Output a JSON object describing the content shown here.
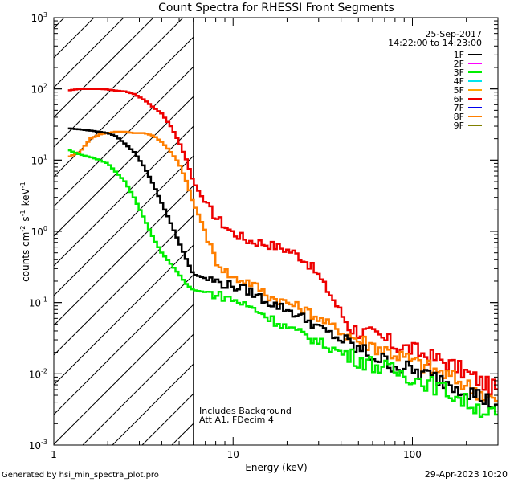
{
  "chart_data": {
    "type": "line",
    "title": "Count Spectra for RHESSI Front Segments",
    "xlabel": "Energy (keV)",
    "ylabel": "counts cm^-2 s^-1 keV^-1",
    "xscale": "log",
    "yscale": "log",
    "xlim": [
      1,
      300
    ],
    "ylim": [
      0.001,
      1000
    ],
    "x_tick_labels": [
      {
        "value": 1,
        "label": "1"
      },
      {
        "value": 10,
        "label": "10"
      },
      {
        "value": 100,
        "label": "100"
      }
    ],
    "y_tick_labels": [
      {
        "value": 0.001,
        "base": "10",
        "exp": "-3"
      },
      {
        "value": 0.01,
        "base": "10",
        "exp": "-2"
      },
      {
        "value": 0.1,
        "base": "10",
        "exp": "-1"
      },
      {
        "value": 1,
        "base": "10",
        "exp": "0"
      },
      {
        "value": 10,
        "base": "10",
        "exp": "1"
      },
      {
        "value": 100,
        "base": "10",
        "exp": "2"
      },
      {
        "value": 1000,
        "base": "10",
        "exp": "3"
      }
    ],
    "date": "25-Sep-2017",
    "time_range": "14:22:00 to 14:23:00",
    "shaded_region_max_energy": 6,
    "annotations": [
      "Includes Background",
      "Att A1, FDecim 4"
    ],
    "legend": [
      {
        "name": "1F",
        "color": "#000000"
      },
      {
        "name": "2F",
        "color": "#ff00ff"
      },
      {
        "name": "3F",
        "color": "#00ee00"
      },
      {
        "name": "4F",
        "color": "#00e5ee"
      },
      {
        "name": "5F",
        "color": "#ffa500"
      },
      {
        "name": "6F",
        "color": "#ee0000"
      },
      {
        "name": "7F",
        "color": "#0000ee"
      },
      {
        "name": "8F",
        "color": "#ff7f00"
      },
      {
        "name": "9F",
        "color": "#808000"
      }
    ],
    "series": [
      {
        "name": "6F",
        "color": "#ee0000",
        "points": [
          [
            1.2,
            95
          ],
          [
            1.4,
            100
          ],
          [
            1.6,
            100
          ],
          [
            1.8,
            100
          ],
          [
            2.0,
            98
          ],
          [
            2.2,
            95
          ],
          [
            2.5,
            92
          ],
          [
            2.8,
            85
          ],
          [
            3.2,
            70
          ],
          [
            3.6,
            55
          ],
          [
            4.0,
            45
          ],
          [
            4.5,
            30
          ],
          [
            5.0,
            18
          ],
          [
            5.5,
            10
          ],
          [
            6.0,
            5
          ],
          [
            6.5,
            3.5
          ],
          [
            7.0,
            2.5
          ],
          [
            8.0,
            1.6
          ],
          [
            9.0,
            1.2
          ],
          [
            10,
            0.95
          ],
          [
            11,
            0.85
          ],
          [
            12,
            0.75
          ],
          [
            14,
            0.7
          ],
          [
            16,
            0.65
          ],
          [
            18,
            0.6
          ],
          [
            20,
            0.55
          ],
          [
            22,
            0.5
          ],
          [
            25,
            0.4
          ],
          [
            28,
            0.3
          ],
          [
            30,
            0.24
          ],
          [
            32,
            0.18
          ],
          [
            35,
            0.13
          ],
          [
            38,
            0.09
          ],
          [
            42,
            0.06
          ],
          [
            45,
            0.045
          ],
          [
            50,
            0.04
          ],
          [
            60,
            0.035
          ],
          [
            70,
            0.03
          ],
          [
            80,
            0.025
          ],
          [
            100,
            0.022
          ],
          [
            120,
            0.018
          ],
          [
            150,
            0.015
          ],
          [
            180,
            0.012
          ],
          [
            220,
            0.009
          ],
          [
            260,
            0.007
          ],
          [
            300,
            0.006
          ]
        ]
      },
      {
        "name": "8F",
        "color": "#ff7f00",
        "points": [
          [
            1.2,
            11
          ],
          [
            1.4,
            13
          ],
          [
            1.6,
            20
          ],
          [
            1.8,
            23
          ],
          [
            2.0,
            24
          ],
          [
            2.2,
            25
          ],
          [
            2.5,
            25
          ],
          [
            2.8,
            24
          ],
          [
            3.2,
            24
          ],
          [
            3.6,
            22
          ],
          [
            4.0,
            18
          ],
          [
            4.5,
            13
          ],
          [
            5.0,
            9
          ],
          [
            5.5,
            5
          ],
          [
            6.0,
            2.5
          ],
          [
            6.5,
            1.6
          ],
          [
            7.0,
            1.0
          ],
          [
            7.5,
            0.6
          ],
          [
            8.0,
            0.4
          ],
          [
            9.0,
            0.28
          ],
          [
            10,
            0.22
          ],
          [
            12,
            0.2
          ],
          [
            14,
            0.16
          ],
          [
            16,
            0.12
          ],
          [
            20,
            0.1
          ],
          [
            25,
            0.08
          ],
          [
            30,
            0.06
          ],
          [
            40,
            0.04
          ],
          [
            50,
            0.03
          ],
          [
            70,
            0.022
          ],
          [
            100,
            0.015
          ],
          [
            150,
            0.01
          ],
          [
            200,
            0.007
          ],
          [
            300,
            0.004
          ]
        ]
      },
      {
        "name": "1F",
        "color": "#000000",
        "points": [
          [
            1.2,
            28
          ],
          [
            1.4,
            27
          ],
          [
            1.6,
            26
          ],
          [
            1.8,
            25
          ],
          [
            2.0,
            24
          ],
          [
            2.2,
            22
          ],
          [
            2.5,
            17
          ],
          [
            2.8,
            13
          ],
          [
            3.2,
            8
          ],
          [
            3.6,
            4.5
          ],
          [
            4.0,
            2.5
          ],
          [
            4.5,
            1.3
          ],
          [
            5.0,
            0.7
          ],
          [
            5.5,
            0.4
          ],
          [
            6.0,
            0.25
          ],
          [
            7.0,
            0.22
          ],
          [
            8.0,
            0.2
          ],
          [
            9.0,
            0.18
          ],
          [
            10,
            0.17
          ],
          [
            12,
            0.15
          ],
          [
            14,
            0.12
          ],
          [
            16,
            0.1
          ],
          [
            20,
            0.08
          ],
          [
            25,
            0.06
          ],
          [
            30,
            0.045
          ],
          [
            40,
            0.03
          ],
          [
            50,
            0.022
          ],
          [
            70,
            0.015
          ],
          [
            100,
            0.011
          ],
          [
            150,
            0.008
          ],
          [
            200,
            0.006
          ],
          [
            300,
            0.0035
          ]
        ]
      },
      {
        "name": "3F",
        "color": "#00ee00",
        "points": [
          [
            1.2,
            14
          ],
          [
            1.4,
            12
          ],
          [
            1.6,
            11
          ],
          [
            1.8,
            10
          ],
          [
            2.0,
            9
          ],
          [
            2.2,
            7
          ],
          [
            2.5,
            5
          ],
          [
            2.8,
            3
          ],
          [
            3.2,
            1.5
          ],
          [
            3.6,
            0.8
          ],
          [
            4.0,
            0.5
          ],
          [
            4.5,
            0.35
          ],
          [
            5.0,
            0.25
          ],
          [
            5.5,
            0.18
          ],
          [
            6.0,
            0.15
          ],
          [
            7.0,
            0.14
          ],
          [
            8.0,
            0.13
          ],
          [
            9.0,
            0.12
          ],
          [
            10,
            0.11
          ],
          [
            12,
            0.09
          ],
          [
            14,
            0.075
          ],
          [
            16,
            0.06
          ],
          [
            20,
            0.045
          ],
          [
            25,
            0.035
          ],
          [
            30,
            0.028
          ],
          [
            40,
            0.02
          ],
          [
            50,
            0.016
          ],
          [
            70,
            0.012
          ],
          [
            100,
            0.009
          ],
          [
            150,
            0.006
          ],
          [
            200,
            0.004
          ],
          [
            300,
            0.0025
          ]
        ]
      }
    ]
  },
  "footer": {
    "generator": "Generated by hsi_min_spectra_plot.pro",
    "timestamp": "29-Apr-2023 10:20"
  }
}
